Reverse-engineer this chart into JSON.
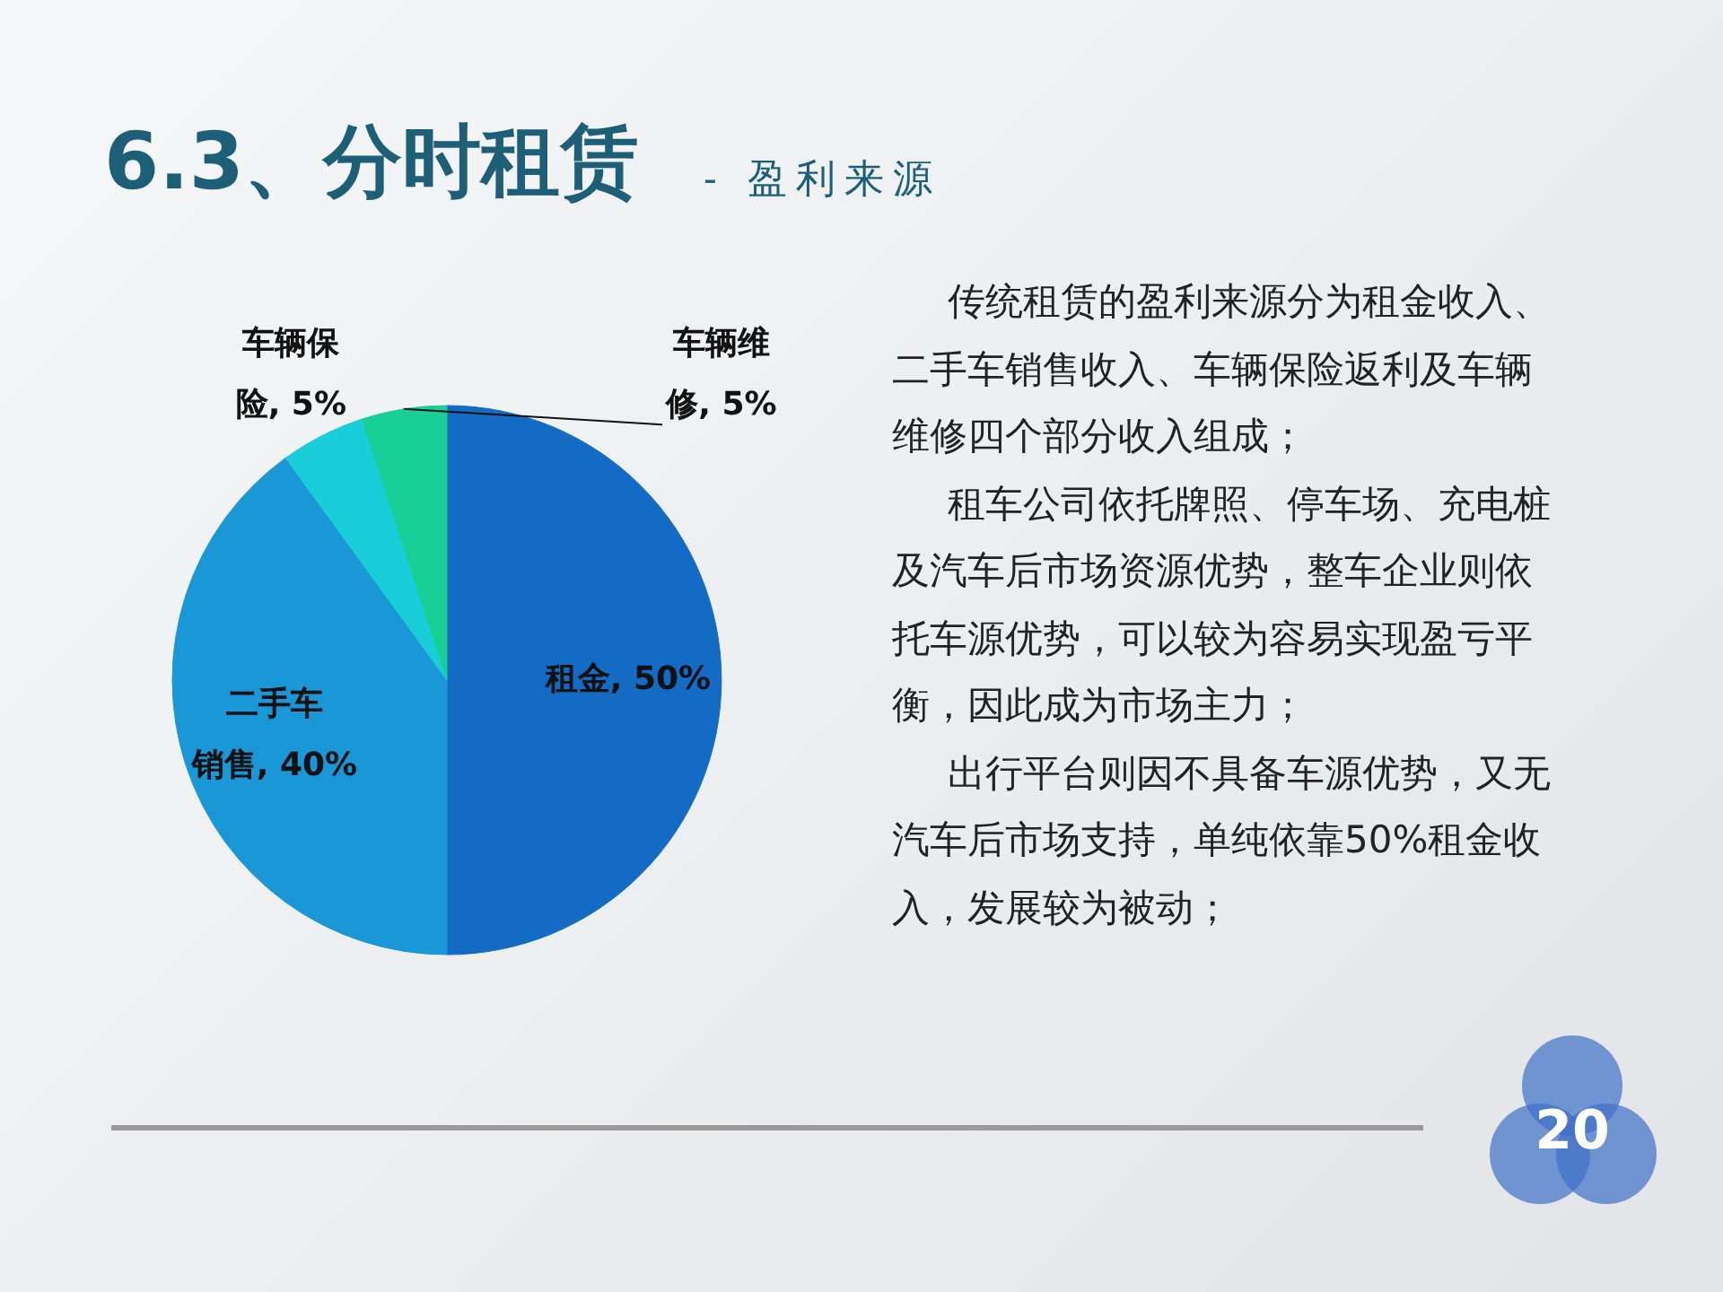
{
  "chart_data": {
    "type": "pie",
    "title": "6.3、分时租赁",
    "subtitle": "- 盈利来源",
    "categories": [
      "租金",
      "二手车销售",
      "车辆保险",
      "车辆维修"
    ],
    "values": [
      50,
      40,
      5,
      5
    ],
    "colors": [
      "#136bc4",
      "#1a97d6",
      "#19cdd9",
      "#18cf95"
    ],
    "value_labels": [
      "50%",
      "40%",
      "5%",
      "5%"
    ],
    "annotations": [
      "传统租赁的盈利来源分为租金收入、二手车销售收入、车辆保险返利及车辆维修四个部分收入组成；",
      "租车公司依托牌照、停车场、充电桩及汽车后市场资源优势，整车企业则依托车源优势，可以较为容易实现盈亏平衡，因此成为市场主力；",
      "出行平台则因不具备车源优势，又无汽车后市场支持，单纯依靠50%租金收入，发展较为被动；",
      "20"
    ]
  }
}
